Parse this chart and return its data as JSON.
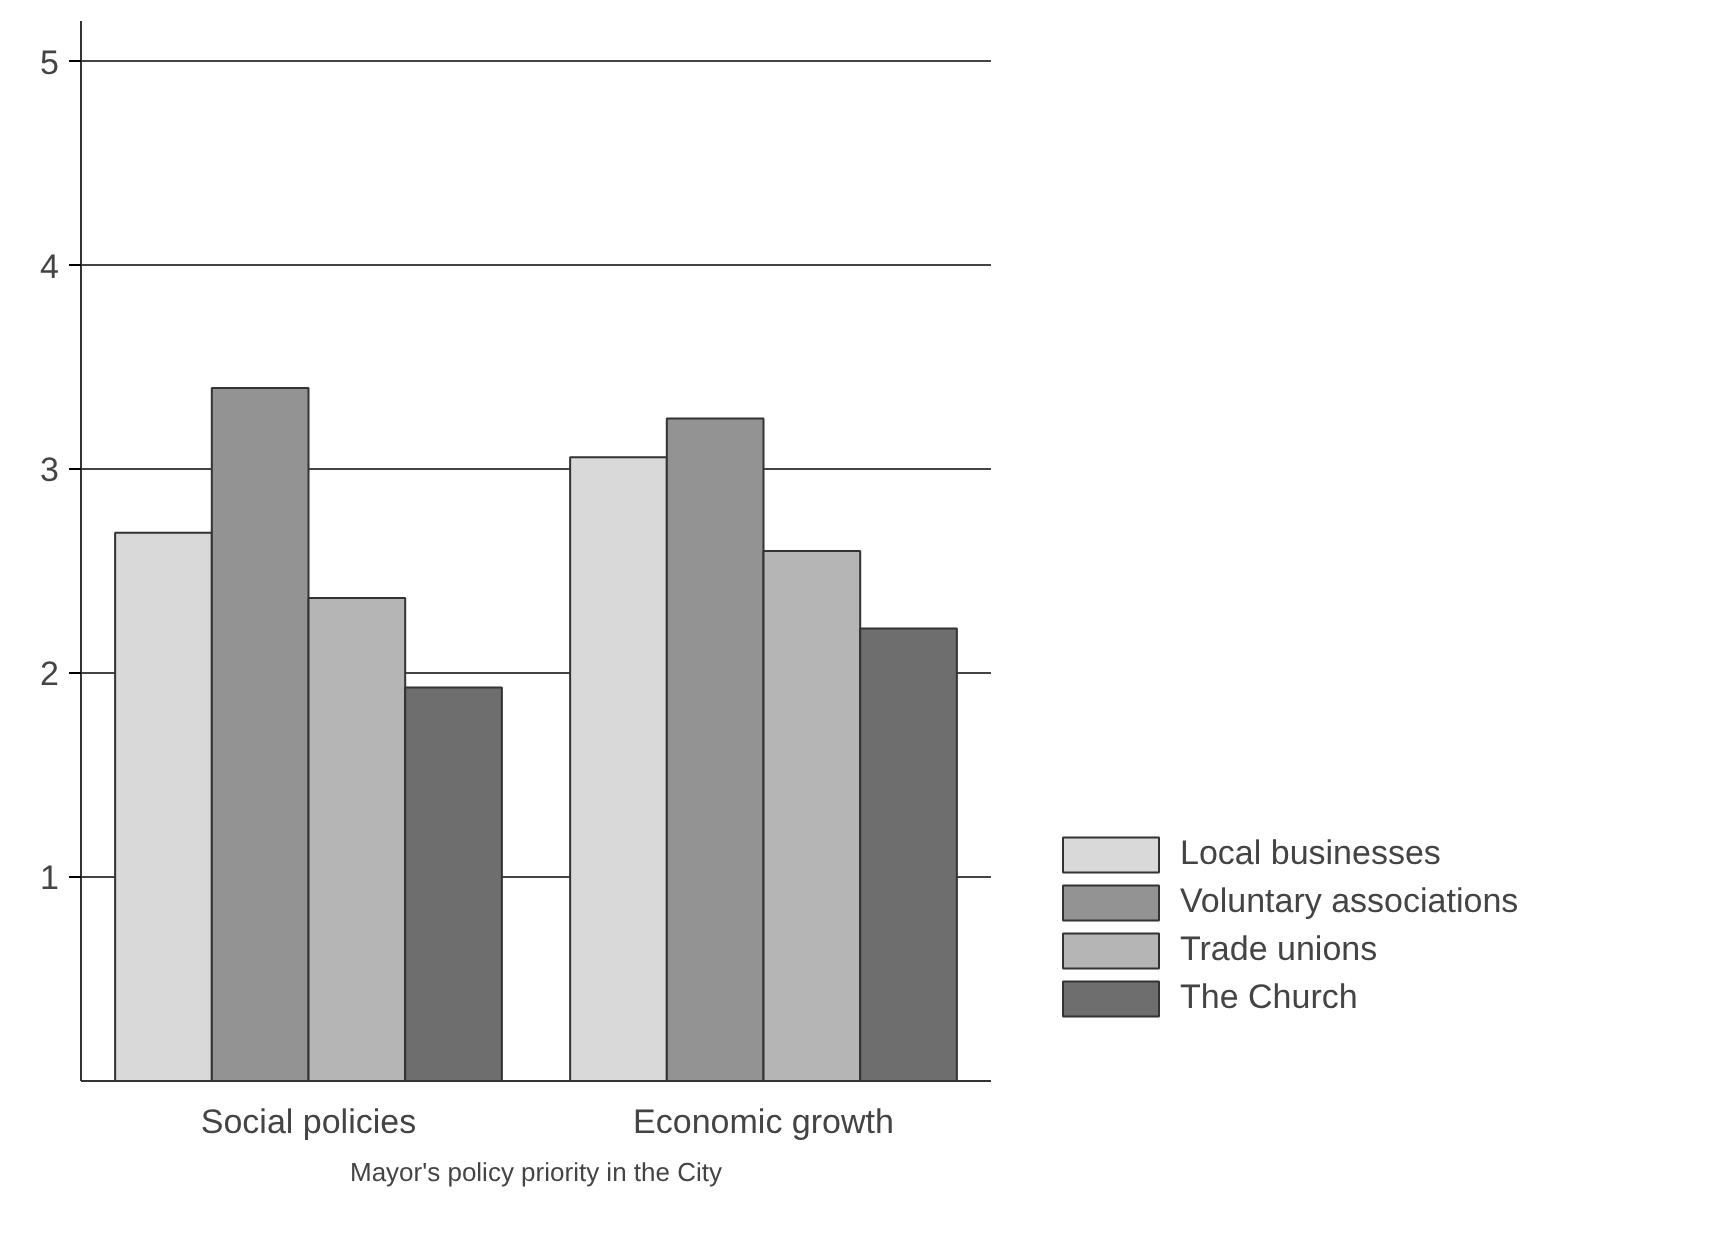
{
  "chart_data": {
    "type": "bar",
    "xlabel": "Mayor's policy priority in the City",
    "categories": [
      "Social policies",
      "Economic growth"
    ],
    "series": [
      {
        "name": "Local businesses",
        "color": "#d9d9d9",
        "values": [
          2.69,
          3.06
        ]
      },
      {
        "name": "Voluntary associations",
        "color": "#939393",
        "values": [
          3.4,
          3.25
        ]
      },
      {
        "name": "Trade unions",
        "color": "#b5b5b5",
        "values": [
          2.37,
          2.6
        ]
      },
      {
        "name": "The Church",
        "color": "#6e6e6e",
        "values": [
          1.93,
          2.22
        ]
      }
    ],
    "ylim": [
      0,
      5.2
    ],
    "yticks": [
      1,
      2,
      3,
      4,
      5
    ],
    "grid": "y",
    "legend": "right"
  }
}
